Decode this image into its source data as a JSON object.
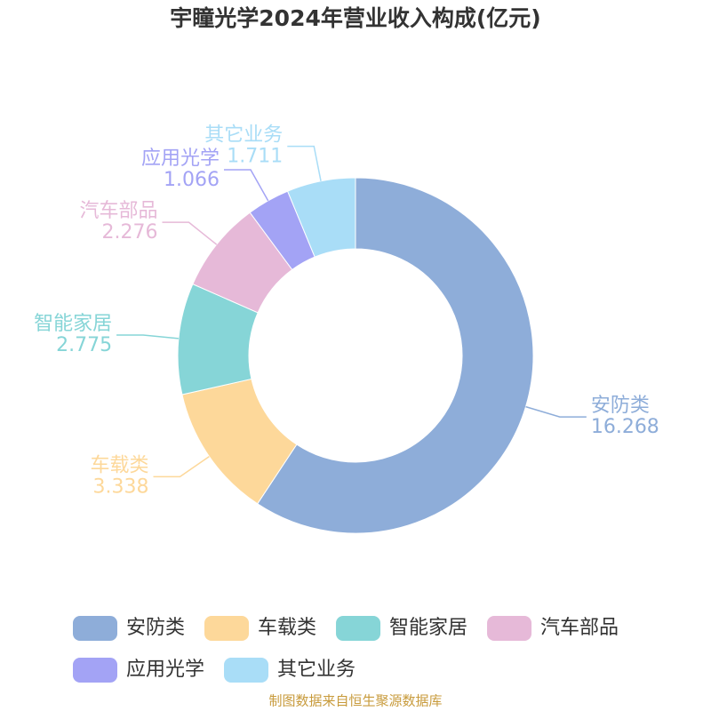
{
  "chart_data": {
    "type": "pie",
    "title": "宇瞳光学2024年营业收入构成(亿元)",
    "categories": [
      "安防类",
      "车载类",
      "智能家居",
      "汽车部品",
      "应用光学",
      "其它业务"
    ],
    "values": [
      16.268,
      3.338,
      2.775,
      2.276,
      1.066,
      1.711
    ],
    "colors": [
      "#8eadd9",
      "#fdd89a",
      "#86d5d7",
      "#e6b9d8",
      "#a3a3f5",
      "#a9ddf7"
    ],
    "legend": "bottom",
    "source": "制图数据来自恒生聚源数据库"
  }
}
